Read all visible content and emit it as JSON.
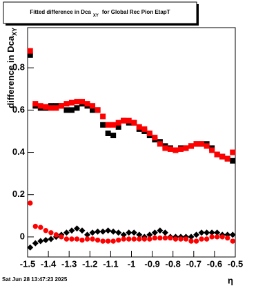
{
  "chart_data": {
    "type": "scatter",
    "title": {
      "main": "Fitted difference in Dca",
      "sub": "XY",
      "rest": "for Global Rec Pion EtapT"
    },
    "y_label": {
      "main": "difference in Dca",
      "sub": "XY"
    },
    "x_label": "η",
    "footer": "Sat Jun 28 13:47:23 2025",
    "x": [
      -1.4875,
      -1.4625,
      -1.4375,
      -1.4125,
      -1.3875,
      -1.3625,
      -1.3375,
      -1.3125,
      -1.2875,
      -1.2625,
      -1.2375,
      -1.2125,
      -1.1875,
      -1.1625,
      -1.1375,
      -1.1125,
      -1.0875,
      -1.0625,
      -1.0375,
      -1.0125,
      -0.9875,
      -0.9625,
      -0.9375,
      -0.9125,
      -0.8875,
      -0.8625,
      -0.8375,
      -0.8125,
      -0.7875,
      -0.7625,
      -0.7375,
      -0.7125,
      -0.6875,
      -0.6625,
      -0.6375,
      -0.6125,
      -0.5875,
      -0.5625,
      -0.5375,
      -0.5125
    ],
    "series": [
      {
        "color": "#000000",
        "marker": "square",
        "values": [
          0.86,
          0.62,
          0.61,
          0.61,
          0.62,
          0.62,
          0.62,
          0.6,
          0.6,
          0.61,
          0.63,
          0.62,
          0.6,
          0.6,
          0.53,
          0.49,
          0.48,
          0.52,
          0.55,
          0.54,
          0.54,
          0.51,
          0.5,
          0.48,
          0.46,
          0.45,
          0.43,
          0.42,
          0.41,
          0.42,
          0.42,
          0.43,
          0.44,
          0.44,
          0.44,
          0.42,
          0.39,
          0.38,
          0.37,
          0.36
        ]
      },
      {
        "color": "#ff0000",
        "marker": "square",
        "values": [
          0.88,
          0.63,
          0.62,
          0.615,
          0.61,
          0.61,
          0.62,
          0.63,
          0.635,
          0.64,
          0.64,
          0.63,
          0.62,
          0.6,
          0.57,
          0.53,
          0.53,
          0.54,
          0.55,
          0.55,
          0.54,
          0.52,
          0.51,
          0.49,
          0.47,
          0.44,
          0.42,
          0.415,
          0.41,
          0.415,
          0.42,
          0.43,
          0.44,
          0.44,
          0.43,
          0.41,
          0.39,
          0.38,
          0.37,
          0.4
        ]
      },
      {
        "color": "#000000",
        "marker": "diamond",
        "values": [
          -0.05,
          -0.03,
          -0.02,
          -0.015,
          -0.01,
          0,
          0.01,
          0.02,
          0.03,
          0.04,
          0.03,
          0.01,
          0.02,
          0.025,
          0.025,
          0.03,
          0.025,
          0.02,
          0.01,
          0.02,
          0.02,
          0.01,
          0,
          0.01,
          0.02,
          0.03,
          0.02,
          0,
          0,
          0,
          0,
          0,
          0.01,
          0.02,
          0.02,
          0.02,
          0.02,
          0.01,
          0.01,
          0.01
        ]
      },
      {
        "color": "#ff0000",
        "marker": "circle",
        "values": [
          0.16,
          0.05,
          0.045,
          0.03,
          0.02,
          0.01,
          0,
          -0.01,
          -0.01,
          -0.01,
          -0.015,
          -0.01,
          -0.01,
          -0.015,
          -0.02,
          -0.02,
          -0.02,
          -0.015,
          -0.01,
          -0.01,
          -0.01,
          -0.01,
          -0.01,
          -0.01,
          -0.005,
          -0.005,
          -0.005,
          -0.005,
          -0.01,
          -0.01,
          -0.01,
          -0.02,
          -0.02,
          -0.01,
          -0.01,
          0,
          0,
          0,
          -0.005,
          -0.02
        ]
      }
    ],
    "xlim": [
      -1.5,
      -0.5
    ],
    "xticks": [
      -1.5,
      -1.4,
      -1.3,
      -1.2,
      -1.1,
      -1,
      -0.9,
      -0.8,
      -0.7,
      -0.6,
      -0.5
    ],
    "ylim": [
      -0.095,
      0.99
    ],
    "yticks": [
      0,
      0.2,
      0.4,
      0.6,
      0.8
    ],
    "grid": false
  }
}
